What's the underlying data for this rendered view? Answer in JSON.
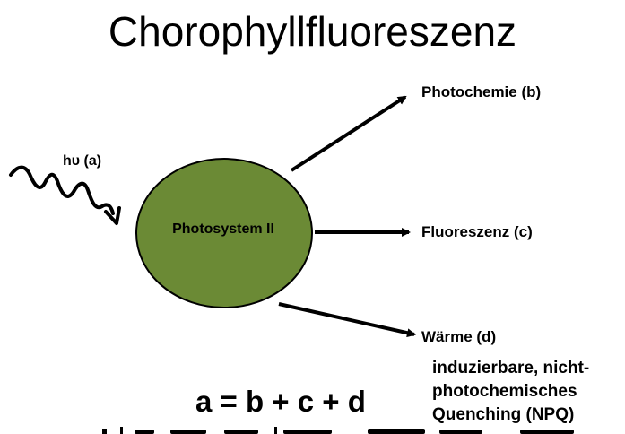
{
  "title": "Chorophyllfluoreszenz",
  "diagram": {
    "input_label": "hυ (a)",
    "center_label": "Photosystem II",
    "outputs": [
      {
        "label": "Photochemie (b)"
      },
      {
        "label": "Fluoreszenz (c)"
      },
      {
        "label": "Wärme (d)"
      }
    ],
    "heat_note": [
      "induzierbare, nicht-",
      "photochemisches",
      "Quenching (NPQ)"
    ],
    "equation": "a = b + c + d"
  },
  "colors": {
    "ellipse_fill": "#6b8a35",
    "ellipse_stroke": "#000000",
    "arrow": "#000000",
    "text": "#000000"
  },
  "icons": {
    "photon": "wavy-arrow-icon"
  }
}
